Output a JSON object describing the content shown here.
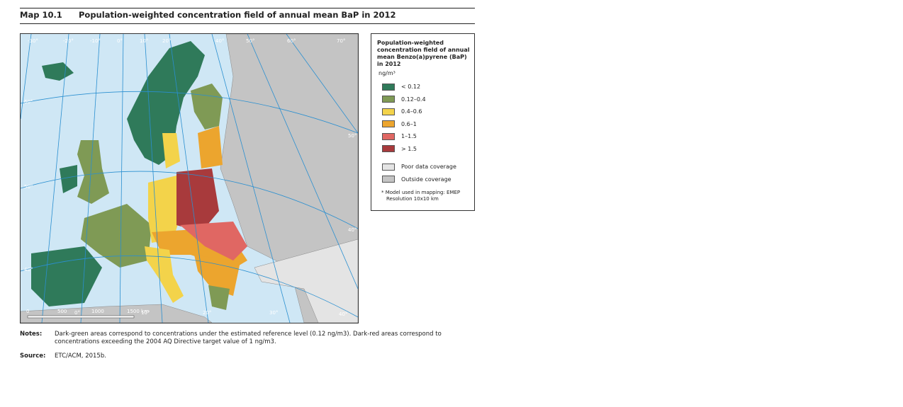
{
  "header": {
    "label": "Map 10.1",
    "title": "Population-weighted concentration field of annual mean BaP in 2012"
  },
  "map": {
    "graticule_labels": [
      "-30°",
      "-20°",
      "-10°",
      "0°",
      "10°",
      "20°",
      "40°",
      "50°",
      "60°",
      "70°",
      "60°",
      "50°",
      "40°",
      "50°",
      "40°",
      "0°",
      "10°",
      "20°",
      "30°",
      "40°"
    ],
    "scale_labels": [
      "0",
      "500",
      "1000",
      "1500 km"
    ]
  },
  "legend": {
    "title": "Population-weighted concentration field of annual mean Benzo(a)pyrene (BaP) in 2012",
    "unit": "ng/m³",
    "items": [
      {
        "label": "< 0.12",
        "color": "#2f7a5a"
      },
      {
        "label": "0.12–0.4",
        "color": "#7f9a55"
      },
      {
        "label": "0.4–0.6",
        "color": "#f3d34a"
      },
      {
        "label": "0.6–1",
        "color": "#eca52e"
      },
      {
        "label": "1–1.5",
        "color": "#e06763"
      },
      {
        "label": "> 1.5",
        "color": "#a83a3c"
      }
    ],
    "coverage": [
      {
        "label": "Poor data coverage",
        "color": "#e4e4e4"
      },
      {
        "label": "Outside coverage",
        "color": "#c4c4c4"
      }
    ],
    "footnote": [
      "* Model used in mapping: EMEP",
      "Resolution 10x10 km"
    ]
  },
  "notes": {
    "label": "Notes:",
    "text": "Dark-green areas correspond to concentrations under the estimated reference level (0.12 ng/m3). Dark-red areas correspond to concentrations exceeding the 2004 AQ Directive target value of 1 ng/m3."
  },
  "source": {
    "label": "Source:",
    "text": "ETC/ACM, 2015b."
  }
}
